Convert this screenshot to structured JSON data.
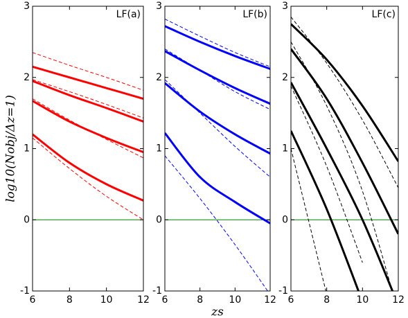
{
  "chart_data": [
    {
      "type": "line",
      "title": "LF(a)",
      "y_label": "log10(Nobj/Δz=1)",
      "x": [
        6,
        8,
        10,
        12
      ],
      "xlim": [
        6,
        12
      ],
      "xticks": [
        6,
        8,
        10,
        12
      ],
      "ylim": [
        -1,
        3
      ],
      "yticks": [
        -1,
        0,
        1,
        2,
        3
      ],
      "zero_line_color": "#008000",
      "series": [
        {
          "color": "#ff0000",
          "style": "solid",
          "values": [
            2.15,
            2.0,
            1.85,
            1.7
          ]
        },
        {
          "color": "#ff0000",
          "style": "solid",
          "values": [
            1.95,
            1.75,
            1.57,
            1.38
          ]
        },
        {
          "color": "#ff0000",
          "style": "solid",
          "values": [
            1.67,
            1.38,
            1.15,
            0.95
          ]
        },
        {
          "color": "#ff0000",
          "style": "solid",
          "values": [
            1.2,
            0.8,
            0.5,
            0.27
          ]
        },
        {
          "color": "#ff0000",
          "style": "dashed",
          "values": [
            2.35,
            2.17,
            2.0,
            1.82
          ]
        },
        {
          "color": "#ff0000",
          "style": "dashed",
          "values": [
            1.97,
            1.8,
            1.62,
            1.43
          ]
        },
        {
          "color": "#ff0000",
          "style": "dashed",
          "values": [
            1.7,
            1.4,
            1.13,
            0.87
          ]
        },
        {
          "color": "#ff0000",
          "style": "dashed",
          "values": [
            1.15,
            0.72,
            0.33,
            0.0
          ]
        }
      ]
    },
    {
      "type": "line",
      "title": "LF(b)",
      "x_label": "zs",
      "x": [
        6,
        8,
        10,
        12
      ],
      "xlim": [
        6,
        12
      ],
      "xticks": [
        6,
        8,
        10,
        12
      ],
      "ylim": [
        -1,
        3
      ],
      "yticks": [
        -1,
        0,
        1,
        2,
        3
      ],
      "zero_line_color": "#008000",
      "series": [
        {
          "color": "#0000ff",
          "style": "solid",
          "values": [
            2.72,
            2.5,
            2.3,
            2.12
          ]
        },
        {
          "color": "#0000ff",
          "style": "solid",
          "values": [
            2.37,
            2.1,
            1.85,
            1.63
          ]
        },
        {
          "color": "#0000ff",
          "style": "solid",
          "values": [
            1.92,
            1.52,
            1.2,
            0.93
          ]
        },
        {
          "color": "#0000ff",
          "style": "solid",
          "values": [
            1.22,
            0.6,
            0.25,
            -0.05
          ]
        },
        {
          "color": "#0000ff",
          "style": "dashed",
          "values": [
            2.82,
            2.58,
            2.35,
            2.15
          ]
        },
        {
          "color": "#0000ff",
          "style": "dashed",
          "values": [
            2.4,
            2.1,
            1.8,
            1.55
          ]
        },
        {
          "color": "#0000ff",
          "style": "dashed",
          "values": [
            1.97,
            1.5,
            1.03,
            0.6
          ]
        },
        {
          "color": "#0000ff",
          "style": "dashed",
          "values": [
            0.9,
            0.3,
            -0.35,
            -1.05
          ]
        }
      ]
    },
    {
      "type": "line",
      "title": "LF(c)",
      "x": [
        6,
        8,
        10,
        12
      ],
      "xlim": [
        6,
        12
      ],
      "xticks": [
        6,
        8,
        10,
        12
      ],
      "ylim": [
        -1,
        3
      ],
      "yticks": [
        -1,
        0,
        1,
        2,
        3
      ],
      "zero_line_color": "#008000",
      "series": [
        {
          "color": "#000000",
          "style": "solid",
          "values": [
            2.75,
            2.25,
            1.6,
            0.82
          ]
        },
        {
          "color": "#000000",
          "style": "solid",
          "values": [
            2.4,
            1.7,
            0.8,
            -0.2
          ]
        },
        {
          "color": "#000000",
          "style": "solid",
          "values": [
            1.93,
            1.0,
            0.0,
            -1.2
          ]
        },
        {
          "color": "#000000",
          "style": "solid",
          "values": [
            1.25,
            0.15,
            -1.15,
            null
          ]
        },
        {
          "color": "#000000",
          "style": "dashed",
          "values": [
            2.85,
            2.2,
            1.4,
            0.45
          ]
        },
        {
          "color": "#000000",
          "style": "dashed",
          "values": [
            2.5,
            1.6,
            0.4,
            -1.3
          ]
        },
        {
          "color": "#000000",
          "style": "dashed",
          "values": [
            1.88,
            0.75,
            -0.6,
            null
          ]
        },
        {
          "color": "#000000",
          "style": "dashed",
          "values": [
            1.0,
            -1.05,
            null,
            null
          ]
        }
      ]
    }
  ]
}
